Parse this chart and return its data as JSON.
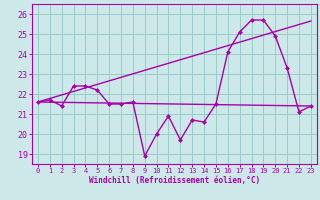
{
  "xlabel": "Windchill (Refroidissement éolien,°C)",
  "ylabel": "",
  "background_color": "#cce8e8",
  "line_color": "#aa00aa",
  "grid_color": "#99cccc",
  "xlim": [
    -0.5,
    23.5
  ],
  "ylim": [
    18.5,
    26.5
  ],
  "yticks": [
    19,
    20,
    21,
    22,
    23,
    24,
    25,
    26
  ],
  "xticks": [
    0,
    1,
    2,
    3,
    4,
    5,
    6,
    7,
    8,
    9,
    10,
    11,
    12,
    13,
    14,
    15,
    16,
    17,
    18,
    19,
    20,
    21,
    22,
    23
  ],
  "series1_x": [
    0,
    1,
    2,
    3,
    4,
    5,
    6,
    7,
    8,
    9,
    10,
    11,
    12,
    13,
    14,
    15,
    16,
    17,
    18,
    19,
    20,
    21,
    22,
    23
  ],
  "series1_y": [
    21.6,
    21.7,
    21.4,
    22.4,
    22.4,
    22.2,
    21.5,
    21.5,
    21.6,
    18.9,
    20.0,
    20.9,
    19.7,
    20.7,
    20.6,
    21.5,
    24.1,
    25.1,
    25.7,
    25.7,
    24.9,
    23.3,
    21.1,
    21.4
  ],
  "series2_x": [
    0,
    23
  ],
  "series2_y": [
    21.6,
    21.4
  ],
  "series3_x": [
    0,
    23
  ],
  "series3_y": [
    21.6,
    25.65
  ]
}
